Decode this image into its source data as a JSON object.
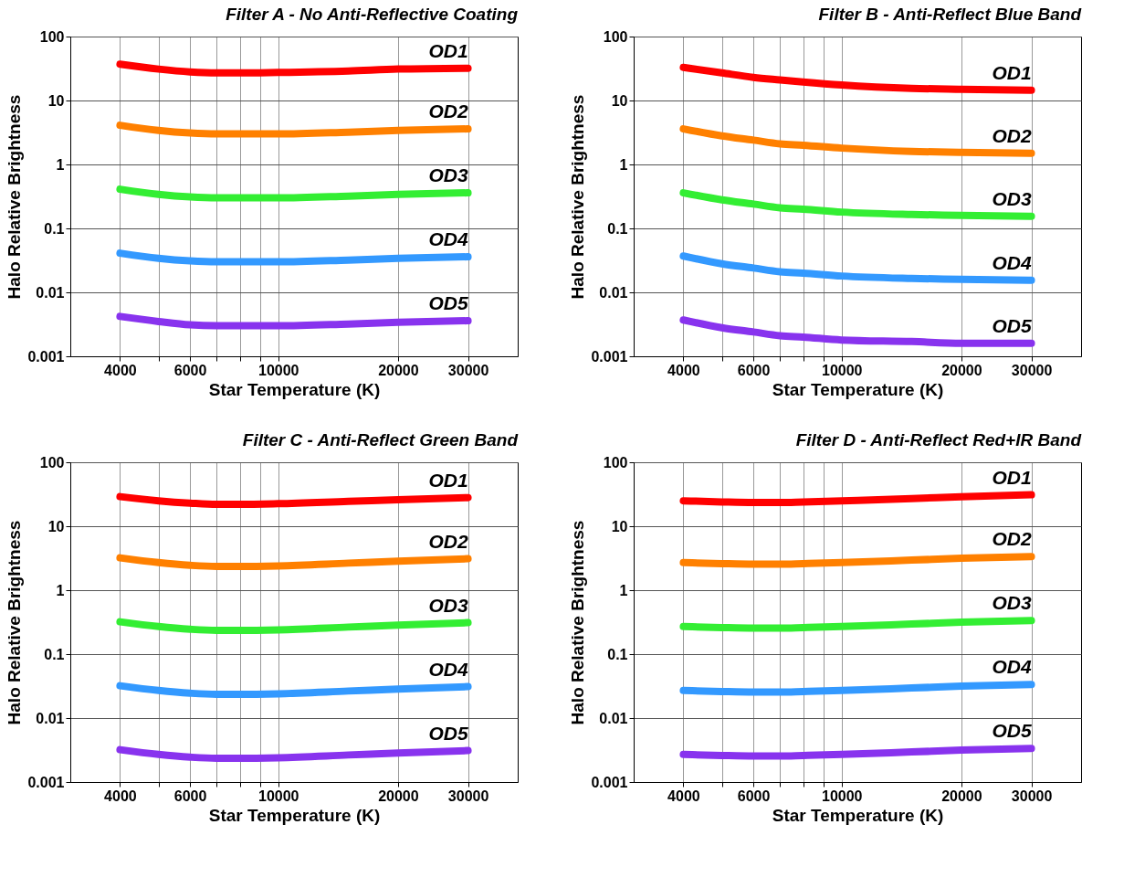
{
  "chart_data": [
    {
      "type": "line",
      "title": "Filter A - No Anti-Reflective Coating",
      "xlabel": "Star Temperature (K)",
      "ylabel": "Halo Relative Brightness",
      "log": "xy",
      "grid": true,
      "xlim": [
        3000,
        40000
      ],
      "ylim": [
        0.001,
        100
      ],
      "xticks": [
        4000,
        {
          "value": 5000,
          "label": null
        },
        6000,
        {
          "value": 7000,
          "label": null
        },
        {
          "value": 8000,
          "label": null
        },
        {
          "value": 9000,
          "label": null
        },
        10000,
        20000,
        30000
      ],
      "yticks": [
        0.001,
        0.01,
        0.1,
        1,
        10,
        100
      ],
      "x": [
        4000,
        5000,
        6000,
        7000,
        8000,
        10000,
        15000,
        20000,
        30000
      ],
      "series": [
        {
          "name": "OD1",
          "color": "#ff0000",
          "values": [
            37,
            31,
            28,
            27,
            27,
            27.5,
            29,
            31,
            32
          ]
        },
        {
          "name": "OD2",
          "color": "#ff8000",
          "values": [
            4.1,
            3.4,
            3.1,
            3.0,
            3.0,
            3.0,
            3.2,
            3.4,
            3.6
          ]
        },
        {
          "name": "OD3",
          "color": "#33ee33",
          "values": [
            0.41,
            0.34,
            0.31,
            0.3,
            0.3,
            0.3,
            0.32,
            0.34,
            0.36
          ]
        },
        {
          "name": "OD4",
          "color": "#3399ff",
          "values": [
            0.041,
            0.034,
            0.031,
            0.03,
            0.03,
            0.03,
            0.032,
            0.034,
            0.036
          ]
        },
        {
          "name": "OD5",
          "color": "#8833ee",
          "values": [
            0.0042,
            0.0035,
            0.0031,
            0.003,
            0.003,
            0.003,
            0.0032,
            0.0034,
            0.0036
          ]
        }
      ]
    },
    {
      "type": "line",
      "title": "Filter B - Anti-Reflect Blue Band",
      "xlabel": "Star Temperature (K)",
      "ylabel": "Halo Relative Brightness",
      "log": "xy",
      "grid": true,
      "xlim": [
        3000,
        40000
      ],
      "ylim": [
        0.001,
        100
      ],
      "xticks": [
        4000,
        {
          "value": 5000,
          "label": null
        },
        6000,
        {
          "value": 7000,
          "label": null
        },
        {
          "value": 8000,
          "label": null
        },
        {
          "value": 9000,
          "label": null
        },
        10000,
        20000,
        30000
      ],
      "yticks": [
        0.001,
        0.01,
        0.1,
        1,
        10,
        100
      ],
      "x": [
        4000,
        5000,
        6000,
        7000,
        8000,
        10000,
        15000,
        20000,
        30000
      ],
      "series": [
        {
          "name": "OD1",
          "color": "#ff0000",
          "values": [
            33,
            27,
            23,
            21,
            19.5,
            17.5,
            15.5,
            15,
            14.5
          ]
        },
        {
          "name": "OD2",
          "color": "#ff8000",
          "values": [
            3.6,
            2.8,
            2.4,
            2.1,
            2.0,
            1.8,
            1.6,
            1.55,
            1.5
          ]
        },
        {
          "name": "OD3",
          "color": "#33ee33",
          "values": [
            0.36,
            0.28,
            0.24,
            0.21,
            0.2,
            0.18,
            0.165,
            0.16,
            0.155
          ]
        },
        {
          "name": "OD4",
          "color": "#3399ff",
          "values": [
            0.037,
            0.028,
            0.024,
            0.021,
            0.02,
            0.018,
            0.0165,
            0.016,
            0.0155
          ]
        },
        {
          "name": "OD5",
          "color": "#8833ee",
          "values": [
            0.0037,
            0.0028,
            0.0024,
            0.0021,
            0.002,
            0.0018,
            0.0017,
            0.0016,
            0.0016
          ]
        }
      ]
    },
    {
      "type": "line",
      "title": "Filter C - Anti-Reflect Green Band",
      "xlabel": "Star Temperature (K)",
      "ylabel": "Halo Relative Brightness",
      "log": "xy",
      "grid": true,
      "xlim": [
        3000,
        40000
      ],
      "ylim": [
        0.001,
        100
      ],
      "xticks": [
        4000,
        {
          "value": 5000,
          "label": null
        },
        6000,
        {
          "value": 7000,
          "label": null
        },
        {
          "value": 8000,
          "label": null
        },
        {
          "value": 9000,
          "label": null
        },
        10000,
        20000,
        30000
      ],
      "yticks": [
        0.001,
        0.01,
        0.1,
        1,
        10,
        100
      ],
      "x": [
        4000,
        5000,
        6000,
        7000,
        8000,
        10000,
        15000,
        20000,
        30000
      ],
      "series": [
        {
          "name": "OD1",
          "color": "#ff0000",
          "values": [
            29,
            25,
            23,
            22,
            22,
            22.5,
            24.5,
            26,
            28
          ]
        },
        {
          "name": "OD2",
          "color": "#ff8000",
          "values": [
            3.2,
            2.7,
            2.45,
            2.35,
            2.35,
            2.4,
            2.65,
            2.85,
            3.1
          ]
        },
        {
          "name": "OD3",
          "color": "#33ee33",
          "values": [
            0.32,
            0.27,
            0.245,
            0.235,
            0.235,
            0.24,
            0.265,
            0.285,
            0.31
          ]
        },
        {
          "name": "OD4",
          "color": "#3399ff",
          "values": [
            0.032,
            0.027,
            0.0245,
            0.0235,
            0.0235,
            0.024,
            0.0265,
            0.0285,
            0.031
          ]
        },
        {
          "name": "OD5",
          "color": "#8833ee",
          "values": [
            0.0032,
            0.0027,
            0.00245,
            0.00235,
            0.00235,
            0.0024,
            0.00265,
            0.00285,
            0.0031
          ]
        }
      ]
    },
    {
      "type": "line",
      "title": "Filter D - Anti-Reflect Red+IR Band",
      "xlabel": "Star Temperature (K)",
      "ylabel": "Halo Relative Brightness",
      "log": "xy",
      "grid": true,
      "xlim": [
        3000,
        40000
      ],
      "ylim": [
        0.001,
        100
      ],
      "xticks": [
        4000,
        {
          "value": 5000,
          "label": null
        },
        6000,
        {
          "value": 7000,
          "label": null
        },
        {
          "value": 8000,
          "label": null
        },
        {
          "value": 9000,
          "label": null
        },
        10000,
        20000,
        30000
      ],
      "yticks": [
        0.001,
        0.01,
        0.1,
        1,
        10,
        100
      ],
      "x": [
        4000,
        5000,
        6000,
        7000,
        8000,
        10000,
        15000,
        20000,
        30000
      ],
      "series": [
        {
          "name": "OD1",
          "color": "#ff0000",
          "values": [
            25,
            24,
            23.5,
            23.5,
            24,
            25,
            27,
            29,
            31
          ]
        },
        {
          "name": "OD2",
          "color": "#ff8000",
          "values": [
            2.7,
            2.6,
            2.55,
            2.55,
            2.6,
            2.7,
            2.95,
            3.15,
            3.35
          ]
        },
        {
          "name": "OD3",
          "color": "#33ee33",
          "values": [
            0.27,
            0.26,
            0.255,
            0.255,
            0.26,
            0.27,
            0.295,
            0.315,
            0.335
          ]
        },
        {
          "name": "OD4",
          "color": "#3399ff",
          "values": [
            0.027,
            0.026,
            0.0255,
            0.0255,
            0.026,
            0.027,
            0.0295,
            0.0315,
            0.0335
          ]
        },
        {
          "name": "OD5",
          "color": "#8833ee",
          "values": [
            0.0027,
            0.0026,
            0.00255,
            0.00255,
            0.0026,
            0.0027,
            0.00295,
            0.00315,
            0.00335
          ]
        }
      ]
    }
  ]
}
